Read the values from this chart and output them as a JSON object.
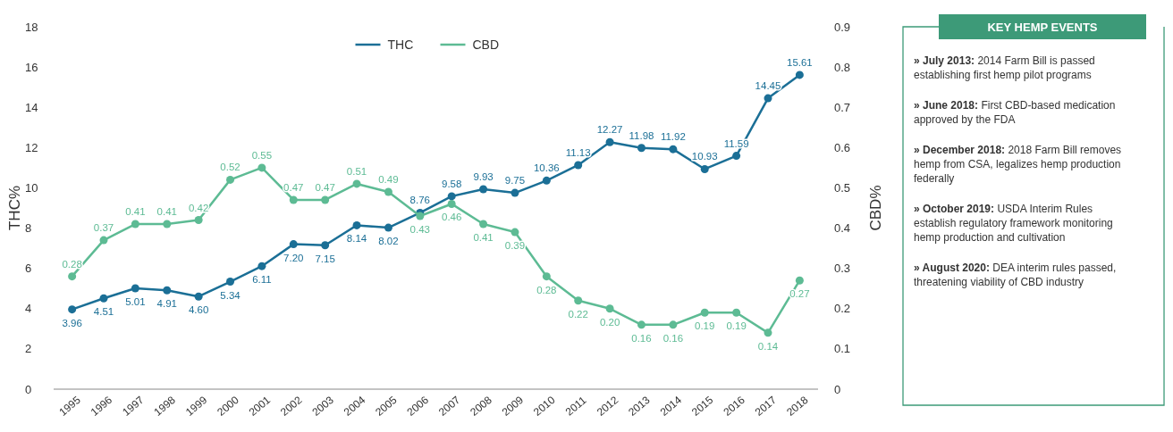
{
  "chart_data": [
    {
      "type": "line",
      "ylabel": "THC%",
      "y2label": "CBD%",
      "categories": [
        "1995",
        "1996",
        "1997",
        "1998",
        "1999",
        "2000",
        "2001",
        "2002",
        "2003",
        "2004",
        "2005",
        "2006",
        "2007",
        "2008",
        "2009",
        "2010",
        "2011",
        "2012",
        "2013",
        "2014",
        "2015",
        "2016",
        "2017",
        "2018"
      ],
      "series": [
        {
          "name": "THC",
          "color": "#1b6f96",
          "values": [
            3.96,
            4.51,
            5.01,
            4.91,
            4.6,
            5.34,
            6.11,
            7.2,
            7.15,
            8.14,
            8.02,
            8.76,
            9.58,
            9.93,
            9.75,
            10.36,
            11.13,
            12.27,
            11.98,
            11.92,
            10.93,
            11.59,
            14.45,
            15.61
          ],
          "value_labels": [
            "3.96",
            "4.51",
            "5.01",
            "4.91",
            "4.60",
            "5.34",
            "6.11",
            "7.20",
            "7.15",
            "8.14",
            "8.02",
            "8.76",
            "9.58",
            "9.93",
            "9.75",
            "10.36",
            "11.13",
            "12.27",
            "11.98",
            "11.92",
            "10.93",
            "11.59",
            "14.45",
            "15.61"
          ]
        },
        {
          "name": "CBD",
          "color": "#5dbb94",
          "axis": "y2",
          "values": [
            0.28,
            0.37,
            0.41,
            0.41,
            0.42,
            0.52,
            0.55,
            0.47,
            0.47,
            0.51,
            0.49,
            0.43,
            0.46,
            0.41,
            0.39,
            0.28,
            0.22,
            0.2,
            0.16,
            0.16,
            0.19,
            0.19,
            0.14,
            0.27
          ],
          "value_labels": [
            "0.28",
            "0.37",
            "0.41",
            "0.41",
            "0.42",
            "0.52",
            "0.55",
            "0.47",
            "0.47",
            "0.51",
            "0.49",
            "0.43",
            "0.46",
            "0.41",
            "0.39",
            "0.28",
            "0.22",
            "0.20",
            "0.16",
            "0.16",
            "0.19",
            "0.19",
            "0.14",
            "0.27"
          ]
        }
      ],
      "ylim": [
        0,
        18
      ],
      "yticks": [
        0,
        2,
        4,
        6,
        8,
        10,
        12,
        14,
        16,
        18
      ],
      "y2lim": [
        0,
        0.9
      ],
      "y2ticks": [
        {
          "value": 0,
          "label": "0"
        },
        {
          "value": 0.1,
          "label": "0.1"
        },
        {
          "value": 0.2,
          "label": "0.2"
        },
        {
          "value": 0.3,
          "label": "0.3"
        },
        {
          "value": 0.4,
          "label": "0.4"
        },
        {
          "value": 0.5,
          "label": "0.5"
        },
        {
          "value": 0.6,
          "label": "0.6"
        },
        {
          "value": 0.7,
          "label": "0.7"
        },
        {
          "value": 0.8,
          "label": "0.8"
        },
        {
          "value": 0.9,
          "label": "0.9"
        }
      ],
      "marker": "circle",
      "legend": "top",
      "grid": false
    },
    {
      "type": "other",
      "title": "KEY HEMP EVENTS",
      "annotations": [
        "» July 2013: 2014 Farm Bill is passed establishing first hemp pilot programs",
        "» June 2018: First CBD-based medication approved by the FDA",
        "» December 2018: 2018 Farm Bill removes hemp from CSA, legalizes hemp production federally",
        "» October 2019: USDA Interim Rules establish regulatory framework monitoring hemp production and cultivation",
        "» August 2020: DEA interim rules passed, threatening viability of CBD industry"
      ]
    }
  ]
}
